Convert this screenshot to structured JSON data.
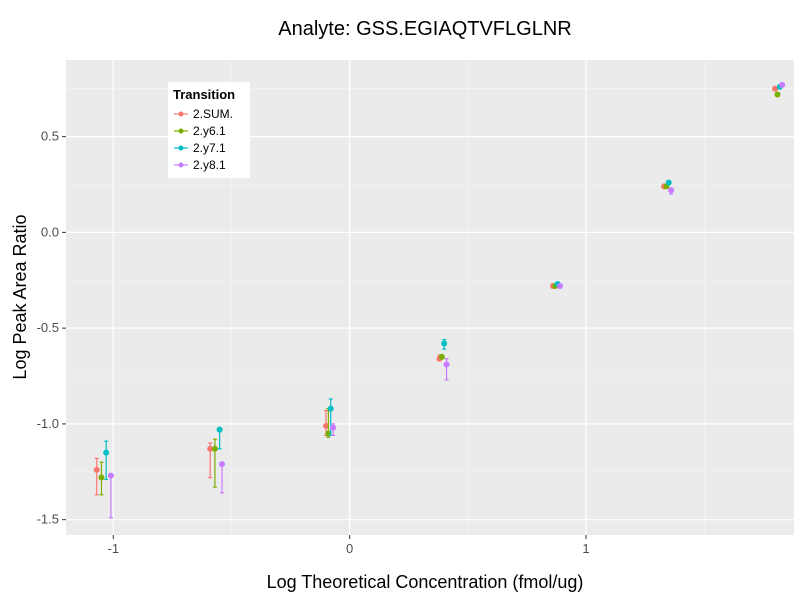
{
  "chart_data": {
    "type": "scatter",
    "title": "Analyte: GSS.EGIAQTVFLGLNR",
    "xlabel": "Log Theoretical Concentration (fmol/ug)",
    "ylabel": "Log Peak Area Ratio",
    "xlim": [
      -1.2,
      1.88
    ],
    "ylim": [
      -1.58,
      0.9
    ],
    "x_ticks": [
      -1,
      0,
      1
    ],
    "x_tick_labels": [
      "-1",
      "0",
      "1"
    ],
    "y_ticks": [
      -1.5,
      -1.0,
      -0.5,
      0.0,
      0.5
    ],
    "y_tick_labels": [
      "-1.5",
      "-1.0",
      "-0.5",
      "0.0",
      "0.5"
    ],
    "grid": true,
    "error_bars": true,
    "legend": {
      "title": "Transition",
      "position": "top-left"
    },
    "series": [
      {
        "name": "2.SUM.",
        "color": "#F8766D",
        "points": [
          {
            "x": -1.07,
            "y": -1.24,
            "lo": -1.37,
            "hi": -1.18
          },
          {
            "x": -0.59,
            "y": -1.13,
            "lo": -1.28,
            "hi": -1.1
          },
          {
            "x": -0.1,
            "y": -1.01,
            "lo": -1.06,
            "hi": -0.93
          },
          {
            "x": 0.38,
            "y": -0.66,
            "lo": -0.67,
            "hi": -0.64
          },
          {
            "x": 0.86,
            "y": -0.28,
            "lo": -0.29,
            "hi": -0.27
          },
          {
            "x": 1.33,
            "y": 0.24,
            "lo": 0.23,
            "hi": 0.25
          },
          {
            "x": 1.8,
            "y": 0.75,
            "lo": 0.74,
            "hi": 0.76
          }
        ]
      },
      {
        "name": "2.y6.1",
        "color": "#7CAE00",
        "points": [
          {
            "x": -1.05,
            "y": -1.28,
            "lo": -1.37,
            "hi": -1.2
          },
          {
            "x": -0.57,
            "y": -1.13,
            "lo": -1.33,
            "hi": -1.08
          },
          {
            "x": -0.09,
            "y": -1.05,
            "lo": -1.07,
            "hi": -0.92
          },
          {
            "x": 0.39,
            "y": -0.65,
            "lo": -0.66,
            "hi": -0.64
          },
          {
            "x": 0.87,
            "y": -0.28,
            "lo": -0.29,
            "hi": -0.27
          },
          {
            "x": 1.34,
            "y": 0.24,
            "lo": 0.23,
            "hi": 0.25
          },
          {
            "x": 1.81,
            "y": 0.72,
            "lo": 0.71,
            "hi": 0.73
          }
        ]
      },
      {
        "name": "2.y7.1",
        "color": "#00BFC4",
        "points": [
          {
            "x": -1.03,
            "y": -1.15,
            "lo": -1.29,
            "hi": -1.09
          },
          {
            "x": -0.55,
            "y": -1.03,
            "lo": -1.13,
            "hi": -1.02
          },
          {
            "x": -0.08,
            "y": -0.92,
            "lo": -1.06,
            "hi": -0.87
          },
          {
            "x": 0.4,
            "y": -0.58,
            "lo": -0.61,
            "hi": -0.56
          },
          {
            "x": 0.88,
            "y": -0.27,
            "lo": -0.28,
            "hi": -0.26
          },
          {
            "x": 1.35,
            "y": 0.26,
            "lo": 0.25,
            "hi": 0.27
          },
          {
            "x": 1.82,
            "y": 0.76,
            "lo": 0.75,
            "hi": 0.77
          }
        ]
      },
      {
        "name": "2.y8.1",
        "color": "#C77CFF",
        "points": [
          {
            "x": -1.01,
            "y": -1.27,
            "lo": -1.49,
            "hi": -1.26
          },
          {
            "x": -0.54,
            "y": -1.21,
            "lo": -1.36,
            "hi": -1.2
          },
          {
            "x": -0.07,
            "y": -1.02,
            "lo": -1.06,
            "hi": -1.0
          },
          {
            "x": 0.41,
            "y": -0.69,
            "lo": -0.77,
            "hi": -0.66
          },
          {
            "x": 0.89,
            "y": -0.28,
            "lo": -0.29,
            "hi": -0.27
          },
          {
            "x": 1.36,
            "y": 0.22,
            "lo": 0.2,
            "hi": 0.23
          },
          {
            "x": 1.83,
            "y": 0.77,
            "lo": 0.76,
            "hi": 0.78
          }
        ]
      }
    ]
  }
}
